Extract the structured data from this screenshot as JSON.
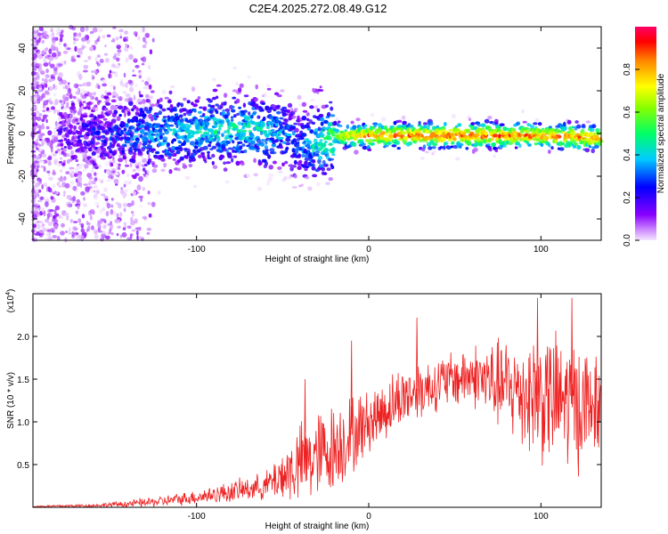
{
  "chart_data": [
    {
      "type": "heatmap",
      "title": "C2E4.2025.272.08.49.G12",
      "xlabel": "Height of straight line (km)",
      "ylabel": "Frequency (Hz)",
      "xlim": [
        -195,
        135
      ],
      "ylim": [
        -50,
        50
      ],
      "xticks": [
        -100,
        0,
        100
      ],
      "yticks": [
        -40,
        -20,
        0,
        20,
        40
      ],
      "xtick_labels": [
        "-100",
        "0",
        "100"
      ],
      "ytick_labels": [
        "-40",
        "-20",
        "0",
        "20",
        "40"
      ],
      "colorbar": {
        "label": "Normalized spectral amplitude",
        "range": [
          0,
          1
        ],
        "ticks": [
          0.0,
          0.2,
          0.4,
          0.6,
          0.8
        ],
        "tick_labels": [
          "0.0",
          "0.2",
          "0.4",
          "0.6",
          "0.8"
        ]
      },
      "ridge": {
        "description_x": [
          -195,
          -170,
          -150,
          -130,
          -110,
          -90,
          -70,
          -50,
          -40,
          -30,
          -20,
          -10,
          0,
          50,
          100,
          135
        ],
        "frequency_hz": [
          0,
          0,
          0,
          0,
          0,
          2,
          2,
          0,
          -5,
          -5,
          -1,
          -1,
          -1,
          -1,
          -1,
          -2
        ],
        "amplitude": [
          0.1,
          0.15,
          0.25,
          0.35,
          0.4,
          0.45,
          0.45,
          0.35,
          0.3,
          0.45,
          0.6,
          0.75,
          0.85,
          0.9,
          0.85,
          0.85
        ]
      }
    },
    {
      "type": "line",
      "xlabel": "Height of straight line (km)",
      "ylabel": "SNR (10 * v/v)",
      "scale_label": "(x10",
      "scale_exponent": "4",
      "scale_suffix": ")",
      "xlim": [
        -195,
        135
      ],
      "ylim": [
        0,
        2.5
      ],
      "xticks": [
        -100,
        0,
        100
      ],
      "yticks": [
        0.5,
        1.0,
        1.5,
        2.0
      ],
      "xtick_labels": [
        "-100",
        "0",
        "100"
      ],
      "ytick_labels": [
        "0.5",
        "1.0",
        "1.5",
        "2.0"
      ],
      "color": "#ee2222",
      "envelope": {
        "x": [
          -195,
          -160,
          -140,
          -120,
          -100,
          -80,
          -60,
          -40,
          -30,
          -20,
          -10,
          0,
          20,
          40,
          60,
          80,
          100,
          120,
          135
        ],
        "mean": [
          0.01,
          0.02,
          0.04,
          0.07,
          0.12,
          0.18,
          0.25,
          0.5,
          0.6,
          0.7,
          0.85,
          1.0,
          1.3,
          1.45,
          1.55,
          1.4,
          1.3,
          1.2,
          1.2
        ],
        "spread": [
          0.01,
          0.02,
          0.04,
          0.06,
          0.08,
          0.12,
          0.15,
          0.45,
          0.5,
          0.5,
          0.45,
          0.35,
          0.35,
          0.3,
          0.35,
          0.55,
          0.75,
          0.75,
          0.5
        ],
        "peak_x": [
          -37,
          -10,
          28,
          98,
          118
        ],
        "peak_y": [
          1.5,
          1.95,
          2.22,
          2.45,
          2.45
        ]
      }
    }
  ]
}
